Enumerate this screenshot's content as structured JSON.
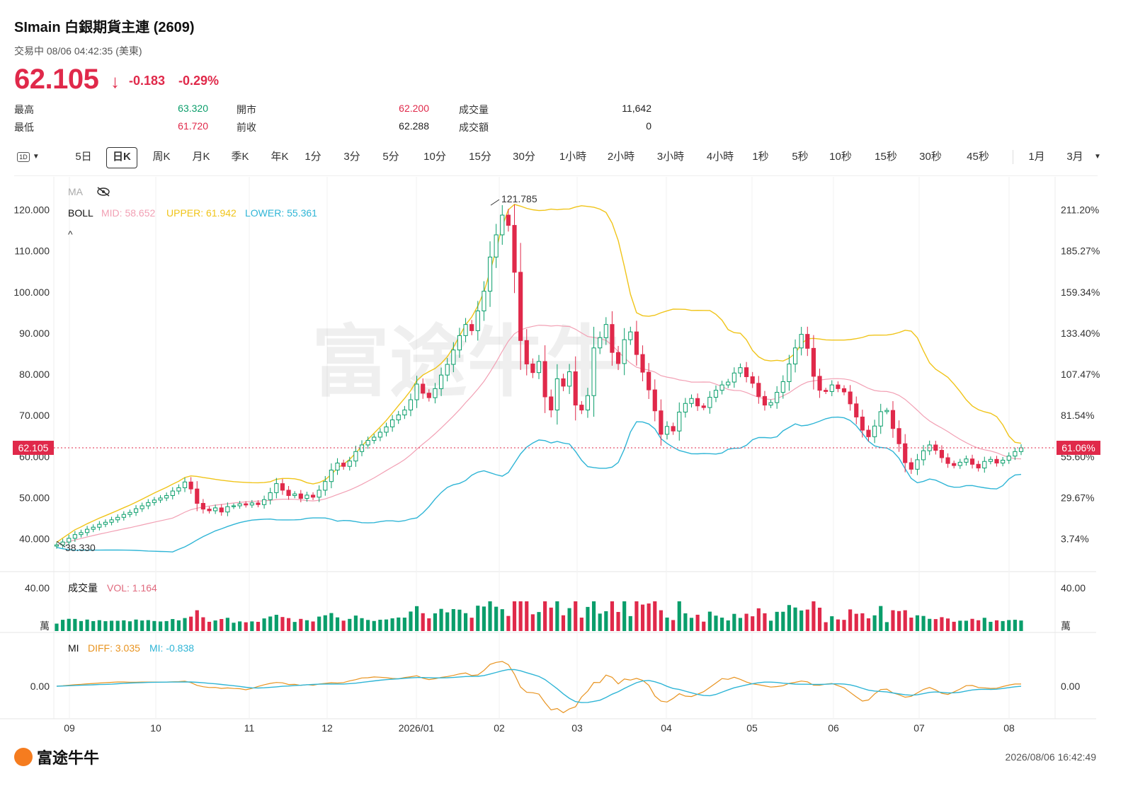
{
  "header": {
    "title": "SImain  白銀期貨主連 (2609)",
    "status": "交易中 08/06 04:42:35 (美東)",
    "price": "62.105",
    "arrow": "↓",
    "change": "-0.183",
    "change_pct": "-0.29%",
    "price_color": "#e0294a"
  },
  "stats": [
    {
      "label": "最高",
      "value": "63.320",
      "color": "green"
    },
    {
      "label": "最低",
      "value": "61.720",
      "color": "red"
    },
    {
      "label": "開市",
      "value": "62.200",
      "color": "red"
    },
    {
      "label": "前收",
      "value": "62.288",
      "color": "dark"
    },
    {
      "label": "成交量",
      "value": "11,642",
      "color": "dark"
    },
    {
      "label": "成交額",
      "value": "0",
      "color": "dark"
    }
  ],
  "tabs": [
    "5日",
    "日K",
    "周K",
    "月K",
    "季K",
    "年K",
    "1分",
    "3分",
    "5分",
    "10分",
    "15分",
    "30分",
    "1小時",
    "2小時",
    "3小時",
    "4小時",
    "1秒",
    "5秒",
    "10秒",
    "15秒",
    "30秒",
    "45秒",
    "1月",
    "3月"
  ],
  "tab_selector_icon": "1D",
  "active_tab": "日K",
  "legend": {
    "ma": "MA",
    "boll_name": "BOLL",
    "mid": "MID: 58.652",
    "upper": "UPPER: 61.942",
    "lower": "LOWER: 55.361",
    "vol_name": "成交量",
    "vol": "VOL: 1.164",
    "mi_name": "MI",
    "diff": "DIFF: 3.035",
    "mi": "MI: -0.838",
    "colors": {
      "mid": "#f2a0b4",
      "upper": "#f0c419",
      "lower": "#2fb5d6",
      "up": "#0a9e6b",
      "down": "#e0294a"
    }
  },
  "chart_data": {
    "type": "candlestick",
    "title": "SImain 白銀期貨主連 (2609)",
    "y_ticks": [
      "120.000",
      "110.000",
      "100.000",
      "90.000",
      "80.000",
      "70.000",
      "60.000",
      "50.000",
      "40.000"
    ],
    "y_right_ticks": [
      "211.20%",
      "185.27%",
      "159.34%",
      "133.40%",
      "107.47%",
      "81.54%",
      "55.60%",
      "29.67%",
      "3.74%"
    ],
    "ylim": [
      32,
      128
    ],
    "x_ticks": [
      "09",
      "10",
      "11",
      "12",
      "2026/01",
      "02",
      "03",
      "04",
      "05",
      "06",
      "07",
      "08"
    ],
    "current_price_label": "62.105",
    "current_pct_label": "61.06%",
    "max_label": "121.785",
    "min_label": "38.330",
    "close_series": [
      {
        "month": "09",
        "close": [
          38.5,
          39.2,
          40.1,
          41.0,
          41.5,
          42.3,
          42.8,
          43.5,
          44.0,
          44.6,
          45.2,
          45.9,
          46.4,
          47.3,
          48.0,
          48.8,
          49.4,
          49.9,
          50.5,
          51.6
        ]
      },
      {
        "month": "10",
        "close": [
          52.4,
          53.8,
          52.1,
          48.6,
          47.2,
          46.8,
          47.5,
          46.5,
          47.8,
          48.0,
          48.5,
          48.2,
          48.7,
          48.3,
          49.5,
          51.2,
          53.4,
          51.8,
          50.5,
          50.9,
          49.8,
          50.6
        ]
      },
      {
        "month": "11",
        "close": [
          50.1,
          51.8,
          53.9,
          56.7,
          58.4,
          57.6,
          58.9,
          61.2,
          62.8,
          63.9,
          64.7,
          65.9,
          67.2,
          68.9,
          70.1,
          71.3,
          73.8,
          77.6,
          75.4,
          74.3
        ]
      },
      {
        "month": "12",
        "close": [
          76.5,
          79.8,
          82.4,
          85.9,
          89.4,
          92.1,
          90.6,
          95.4,
          100.2,
          108.5,
          113.9,
          118.7,
          116.2,
          104.8,
          88.2,
          82.5,
          80.4,
          83.1
        ]
      },
      {
        "month": "02",
        "close": [
          74.5,
          71.3,
          78.9,
          77.1,
          80.6,
          72.5,
          71.3,
          74.8,
          86.4,
          88.9,
          92.1,
          85.3,
          82.6,
          88.4,
          90.3,
          84.8,
          80.5,
          76.2,
          71.1,
          65.4
        ]
      },
      {
        "month": "03",
        "close": [
          67.3,
          66.2,
          70.8,
          72.9,
          74.1,
          72.3,
          71.9,
          74.4,
          76.1,
          77.4,
          78.1,
          80.3,
          81.6,
          79.4,
          77.8,
          74.6,
          72.5,
          73.1,
          75.6,
          78.2,
          82.5,
          86.4,
          89.7
        ]
      },
      {
        "month": "05",
        "close": [
          86.3,
          79.5,
          76.1,
          75.8,
          77.4,
          76.5,
          75.7,
          72.8,
          69.6,
          66.4,
          64.8,
          67.4,
          70.9,
          71.2,
          66.8,
          63.1,
          58.5,
          56.9,
          59.2,
          61.4,
          62.8,
          61.5,
          59.7
        ]
      },
      {
        "month": "07",
        "close": [
          58.3,
          57.8,
          58.6,
          59.4,
          58.1,
          57.2,
          58.8,
          59.3,
          58.4,
          59.1,
          60.1,
          61.2,
          62.1
        ]
      }
    ],
    "volume_unit": "萬",
    "volume_ticks": [
      "40.00"
    ],
    "mi_ticks": [
      "0.00"
    ]
  },
  "footer": {
    "logo": "富途牛牛",
    "timestamp": "2026/08/06 16:42:49"
  }
}
